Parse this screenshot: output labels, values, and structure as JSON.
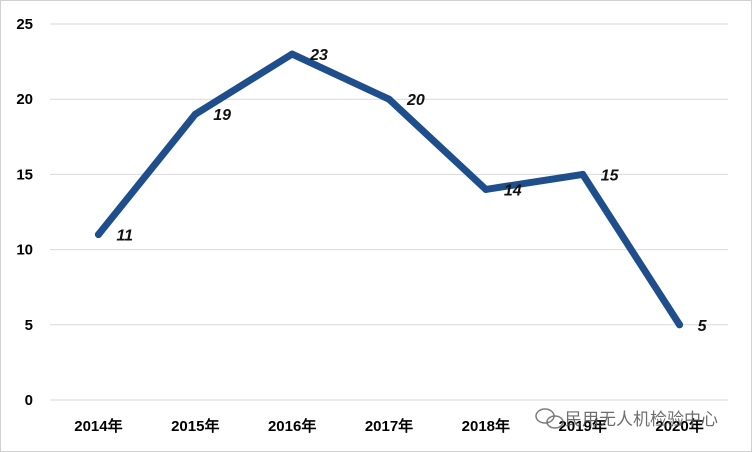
{
  "chart_data": {
    "type": "line",
    "title": "",
    "xlabel": "",
    "ylabel": "",
    "categories": [
      "2014年",
      "2015年",
      "2016年",
      "2017年",
      "2018年",
      "2019年",
      "2020年"
    ],
    "series": [
      {
        "values": [
          11,
          19,
          23,
          20,
          14,
          15,
          5
        ]
      }
    ],
    "ylim": [
      0,
      25
    ],
    "yticks": [
      0,
      5,
      10,
      15,
      20,
      25
    ],
    "grid": true,
    "legend": "none",
    "line_color": "#1f4e8c",
    "data_labels": true
  },
  "watermark": {
    "text": "民用无人机检验中心",
    "icon": "wechat-icon"
  }
}
